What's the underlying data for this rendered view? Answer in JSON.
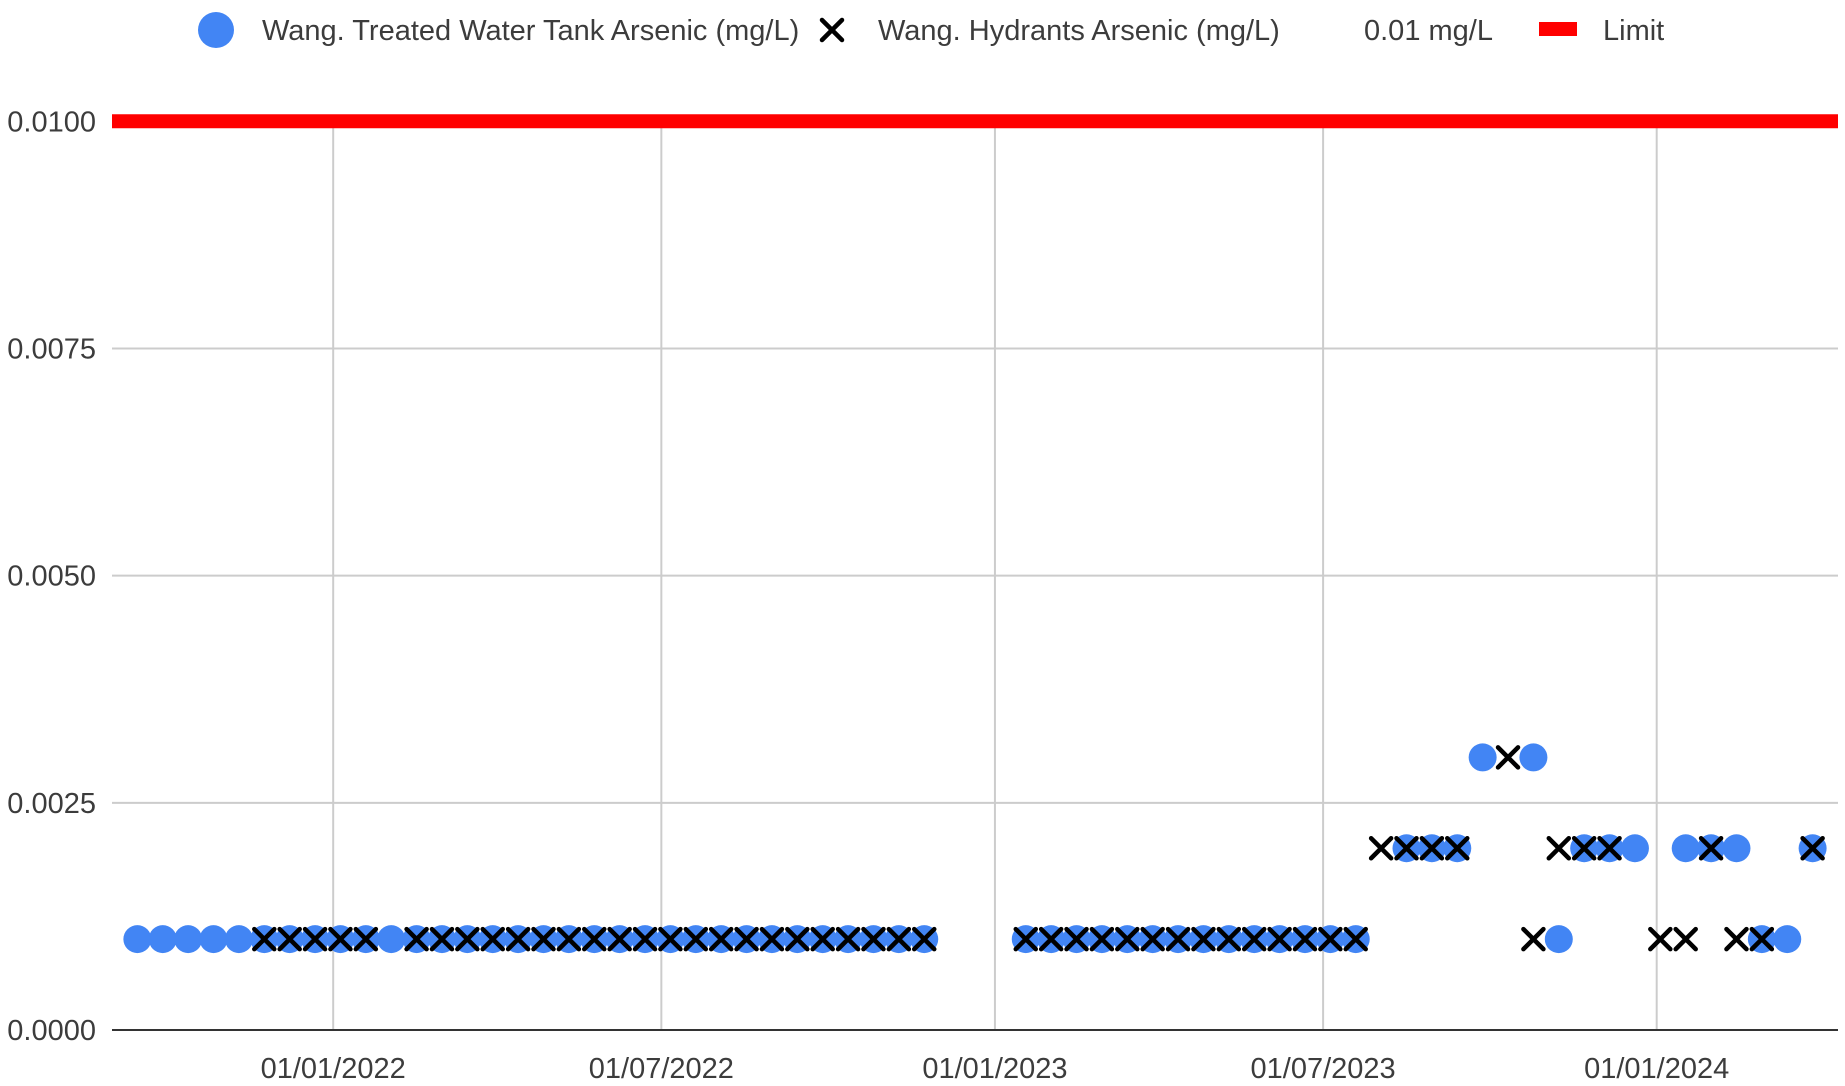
{
  "legend": {
    "items": [
      {
        "label": "Wang. Treated Water Tank Arsenic (mg/L)",
        "marker": "circle",
        "color": "#4285f4"
      },
      {
        "label": "Wang. Hydrants Arsenic (mg/L)",
        "marker": "x",
        "color": "#000000"
      },
      {
        "label": "0.01 mg/L",
        "marker": "none",
        "color": "#3c3c3c"
      },
      {
        "label": "Limit",
        "marker": "line",
        "color": "#ff0000"
      }
    ]
  },
  "chart_data": {
    "type": "scatter",
    "title": "",
    "xlabel": "",
    "ylabel": "",
    "x_type": "date",
    "xlim": [
      "2021-09-01",
      "2024-04-10"
    ],
    "ylim": [
      0,
      0.0103
    ],
    "x_ticks": [
      "2022-01-01",
      "2022-07-01",
      "2023-01-01",
      "2023-07-01",
      "2024-01-01"
    ],
    "x_tick_labels": [
      "01/01/2022",
      "01/07/2022",
      "01/01/2023",
      "01/07/2023",
      "01/01/2024"
    ],
    "y_ticks": [
      0,
      0.0025,
      0.005,
      0.0075,
      0.01
    ],
    "y_tick_labels": [
      "0.0000",
      "0.0025",
      "0.0050",
      "0.0075",
      "0.0100"
    ],
    "grid": true,
    "legend_position": "top",
    "series": [
      {
        "name": "Wang. Treated Water Tank Arsenic (mg/L)",
        "marker": "circle",
        "color": "#4285f4",
        "points": [
          {
            "x": "2021-09-15",
            "y": 0.001
          },
          {
            "x": "2021-09-29",
            "y": 0.001
          },
          {
            "x": "2021-10-13",
            "y": 0.001
          },
          {
            "x": "2021-10-27",
            "y": 0.001
          },
          {
            "x": "2021-11-10",
            "y": 0.001
          },
          {
            "x": "2021-11-24",
            "y": 0.001
          },
          {
            "x": "2021-12-08",
            "y": 0.001
          },
          {
            "x": "2021-12-22",
            "y": 0.001
          },
          {
            "x": "2022-01-05",
            "y": 0.001
          },
          {
            "x": "2022-01-19",
            "y": 0.001
          },
          {
            "x": "2022-02-02",
            "y": 0.001
          },
          {
            "x": "2022-02-16",
            "y": 0.001
          },
          {
            "x": "2022-03-02",
            "y": 0.001
          },
          {
            "x": "2022-03-16",
            "y": 0.001
          },
          {
            "x": "2022-03-30",
            "y": 0.001
          },
          {
            "x": "2022-04-13",
            "y": 0.001
          },
          {
            "x": "2022-04-27",
            "y": 0.001
          },
          {
            "x": "2022-05-11",
            "y": 0.001
          },
          {
            "x": "2022-05-25",
            "y": 0.001
          },
          {
            "x": "2022-06-08",
            "y": 0.001
          },
          {
            "x": "2022-06-22",
            "y": 0.001
          },
          {
            "x": "2022-07-06",
            "y": 0.001
          },
          {
            "x": "2022-07-20",
            "y": 0.001
          },
          {
            "x": "2022-08-03",
            "y": 0.001
          },
          {
            "x": "2022-08-17",
            "y": 0.001
          },
          {
            "x": "2022-08-31",
            "y": 0.001
          },
          {
            "x": "2022-09-14",
            "y": 0.001
          },
          {
            "x": "2022-09-28",
            "y": 0.001
          },
          {
            "x": "2022-10-12",
            "y": 0.001
          },
          {
            "x": "2022-10-26",
            "y": 0.001
          },
          {
            "x": "2022-11-09",
            "y": 0.001
          },
          {
            "x": "2022-11-23",
            "y": 0.001
          },
          {
            "x": "2023-01-18",
            "y": 0.001
          },
          {
            "x": "2023-02-01",
            "y": 0.001
          },
          {
            "x": "2023-02-15",
            "y": 0.001
          },
          {
            "x": "2023-03-01",
            "y": 0.001
          },
          {
            "x": "2023-03-15",
            "y": 0.001
          },
          {
            "x": "2023-03-29",
            "y": 0.001
          },
          {
            "x": "2023-04-12",
            "y": 0.001
          },
          {
            "x": "2023-04-26",
            "y": 0.001
          },
          {
            "x": "2023-05-10",
            "y": 0.001
          },
          {
            "x": "2023-05-24",
            "y": 0.001
          },
          {
            "x": "2023-06-07",
            "y": 0.001
          },
          {
            "x": "2023-06-21",
            "y": 0.001
          },
          {
            "x": "2023-07-05",
            "y": 0.001
          },
          {
            "x": "2023-07-19",
            "y": 0.001
          },
          {
            "x": "2023-08-16",
            "y": 0.002
          },
          {
            "x": "2023-08-30",
            "y": 0.002
          },
          {
            "x": "2023-09-13",
            "y": 0.002
          },
          {
            "x": "2023-09-27",
            "y": 0.003
          },
          {
            "x": "2023-10-25",
            "y": 0.003
          },
          {
            "x": "2023-11-08",
            "y": 0.001
          },
          {
            "x": "2023-11-22",
            "y": 0.002
          },
          {
            "x": "2023-12-06",
            "y": 0.002
          },
          {
            "x": "2023-12-20",
            "y": 0.002
          },
          {
            "x": "2024-01-17",
            "y": 0.002
          },
          {
            "x": "2024-01-31",
            "y": 0.002
          },
          {
            "x": "2024-02-14",
            "y": 0.002
          },
          {
            "x": "2024-02-28",
            "y": 0.001
          },
          {
            "x": "2024-03-13",
            "y": 0.001
          },
          {
            "x": "2024-03-27",
            "y": 0.002
          }
        ]
      },
      {
        "name": "Wang. Hydrants Arsenic (mg/L)",
        "marker": "x",
        "color": "#000000",
        "points": [
          {
            "x": "2021-11-24",
            "y": 0.001
          },
          {
            "x": "2021-12-08",
            "y": 0.001
          },
          {
            "x": "2021-12-22",
            "y": 0.001
          },
          {
            "x": "2022-01-05",
            "y": 0.001
          },
          {
            "x": "2022-01-19",
            "y": 0.001
          },
          {
            "x": "2022-02-16",
            "y": 0.001
          },
          {
            "x": "2022-03-02",
            "y": 0.001
          },
          {
            "x": "2022-03-16",
            "y": 0.001
          },
          {
            "x": "2022-03-30",
            "y": 0.001
          },
          {
            "x": "2022-04-13",
            "y": 0.001
          },
          {
            "x": "2022-04-27",
            "y": 0.001
          },
          {
            "x": "2022-05-11",
            "y": 0.001
          },
          {
            "x": "2022-05-25",
            "y": 0.001
          },
          {
            "x": "2022-06-08",
            "y": 0.001
          },
          {
            "x": "2022-06-22",
            "y": 0.001
          },
          {
            "x": "2022-07-06",
            "y": 0.001
          },
          {
            "x": "2022-07-20",
            "y": 0.001
          },
          {
            "x": "2022-08-03",
            "y": 0.001
          },
          {
            "x": "2022-08-17",
            "y": 0.001
          },
          {
            "x": "2022-08-31",
            "y": 0.001
          },
          {
            "x": "2022-09-14",
            "y": 0.001
          },
          {
            "x": "2022-09-28",
            "y": 0.001
          },
          {
            "x": "2022-10-12",
            "y": 0.001
          },
          {
            "x": "2022-10-26",
            "y": 0.001
          },
          {
            "x": "2022-11-09",
            "y": 0.001
          },
          {
            "x": "2022-11-23",
            "y": 0.001
          },
          {
            "x": "2023-01-18",
            "y": 0.001
          },
          {
            "x": "2023-02-01",
            "y": 0.001
          },
          {
            "x": "2023-02-15",
            "y": 0.001
          },
          {
            "x": "2023-03-01",
            "y": 0.001
          },
          {
            "x": "2023-03-15",
            "y": 0.001
          },
          {
            "x": "2023-03-29",
            "y": 0.001
          },
          {
            "x": "2023-04-12",
            "y": 0.001
          },
          {
            "x": "2023-04-26",
            "y": 0.001
          },
          {
            "x": "2023-05-10",
            "y": 0.001
          },
          {
            "x": "2023-05-24",
            "y": 0.001
          },
          {
            "x": "2023-06-07",
            "y": 0.001
          },
          {
            "x": "2023-06-21",
            "y": 0.001
          },
          {
            "x": "2023-07-05",
            "y": 0.001
          },
          {
            "x": "2023-07-19",
            "y": 0.001
          },
          {
            "x": "2023-08-02",
            "y": 0.002
          },
          {
            "x": "2023-08-16",
            "y": 0.002
          },
          {
            "x": "2023-08-30",
            "y": 0.002
          },
          {
            "x": "2023-09-13",
            "y": 0.002
          },
          {
            "x": "2023-10-11",
            "y": 0.003
          },
          {
            "x": "2023-10-25",
            "y": 0.001
          },
          {
            "x": "2023-11-08",
            "y": 0.002
          },
          {
            "x": "2023-11-22",
            "y": 0.002
          },
          {
            "x": "2023-12-06",
            "y": 0.002
          },
          {
            "x": "2024-01-03",
            "y": 0.001
          },
          {
            "x": "2024-01-17",
            "y": 0.001
          },
          {
            "x": "2024-01-31",
            "y": 0.002
          },
          {
            "x": "2024-02-14",
            "y": 0.001
          },
          {
            "x": "2024-02-28",
            "y": 0.001
          },
          {
            "x": "2024-03-27",
            "y": 0.002
          }
        ]
      },
      {
        "name": "Limit",
        "marker": "line",
        "color": "#ff0000",
        "points": [
          {
            "x": "2021-09-01",
            "y": 0.01
          },
          {
            "x": "2024-04-10",
            "y": 0.01
          }
        ]
      }
    ]
  }
}
